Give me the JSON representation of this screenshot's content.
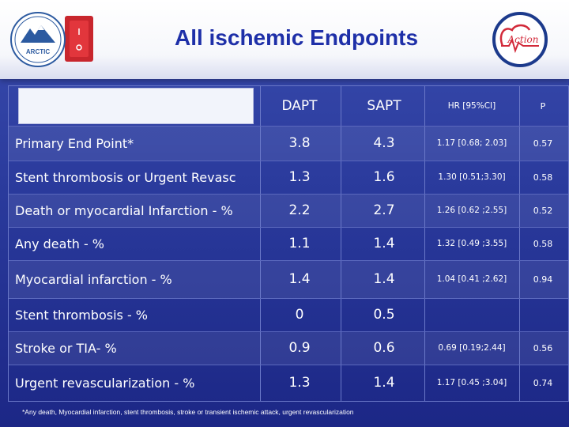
{
  "header": {
    "title": "All ischemic Endpoints",
    "left_logo_text": "ARCTIC",
    "right_logo_text": "Action"
  },
  "table": {
    "columns": [
      "DAPT",
      "SAPT",
      "HR [95%CI]",
      "P"
    ],
    "rows": [
      {
        "label": "Primary End Point*",
        "dapt": "3.8",
        "sapt": "4.3",
        "hr": "1.17 [0.68; 2.03]",
        "p": "0.57"
      },
      {
        "label": "Stent thrombosis or Urgent Revasc",
        "dapt": "1.3",
        "sapt": "1.6",
        "hr": "1.30 [0.51;3.30]",
        "p": "0.58"
      },
      {
        "label": "Death or myocardial Infarction - %",
        "dapt": "2.2",
        "sapt": "2.7",
        "hr": "1.26 [0.62 ;2.55]",
        "p": "0.52"
      },
      {
        "label": "Any death - %",
        "dapt": "1.1",
        "sapt": "1.4",
        "hr": "1.32 [0.49 ;3.55]",
        "p": "0.58"
      },
      {
        "label": "Myocardial infarction - %",
        "dapt": "1.4",
        "sapt": "1.4",
        "hr": "1.04 [0.41 ;2.62]",
        "p": "0.94"
      },
      {
        "label": "Stent thrombosis - %",
        "dapt": "0",
        "sapt": "0.5",
        "hr": "",
        "p": ""
      },
      {
        "label": "Stroke or TIA- %",
        "dapt": "0.9",
        "sapt": "0.6",
        "hr": "0.69 [0.19;2.44]",
        "p": "0.56"
      },
      {
        "label": "Urgent revascularization - %",
        "dapt": "1.3",
        "sapt": "1.4",
        "hr": "1.17 [0.45 ;3.04]",
        "p": "0.74"
      }
    ]
  },
  "footnote": "*Any death, Myocardial infarction, stent thrombosis, stroke or transient ischemic attack, urgent revascularization",
  "colors": {
    "background": "#2a3a9c",
    "title": "#1e2fa8",
    "text": "#ffffff"
  }
}
